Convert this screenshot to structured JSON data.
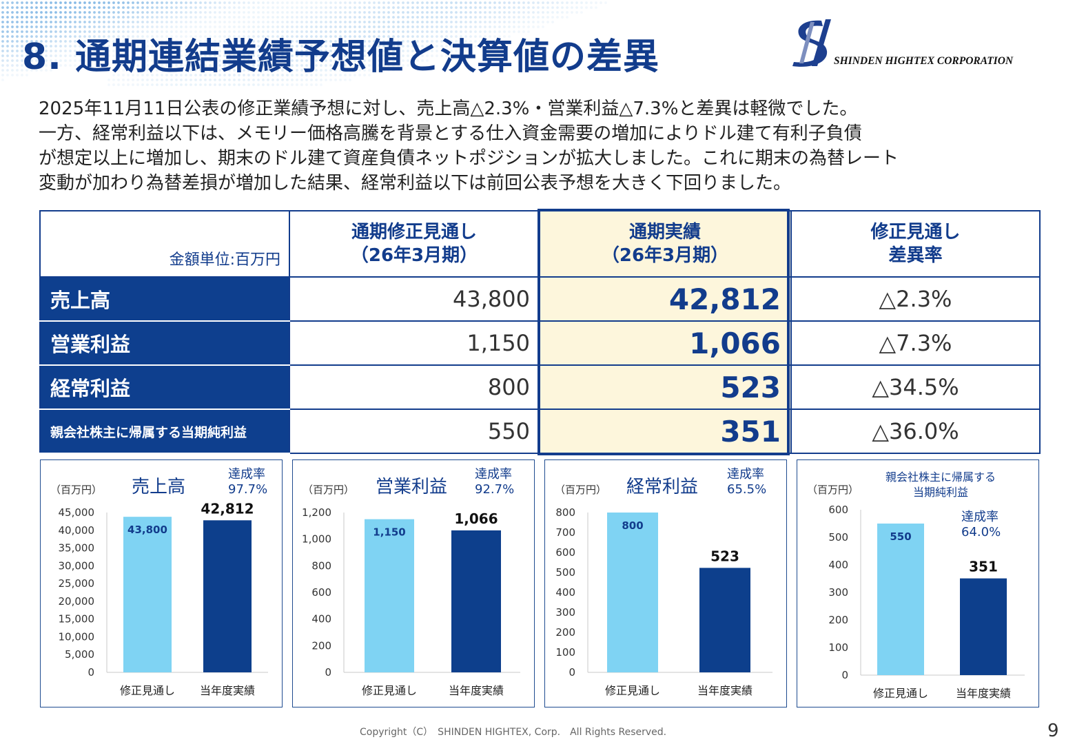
{
  "header": {
    "title": "8. 通期連結業績予想値と決算値の差異",
    "logo_text": "SHINDEN HIGHTEX CORPORATION"
  },
  "summary": [
    "2025年11月11日公表の修正業績予想に対し、売上高△2.3%・営業利益△7.3%と差異は軽微でした。",
    "一方、経常利益以下は、メモリー価格高騰を背景とする仕入資金需要の増加によりドル建て有利子負債",
    "が想定以上に増加し、期末のドル建て資産負債ネットポジションが拡大しました。これに期末の為替レート",
    "変動が加わり為替差損が増加した結果、経常利益以下は前回公表予想を大きく下回りました。"
  ],
  "table": {
    "unit_label": "金額単位:百万円",
    "headers": [
      {
        "line1": "通期修正見通し",
        "line2": "（26年3月期）"
      },
      {
        "line1": "通期実績",
        "line2": "（26年3月期）"
      },
      {
        "line1": "修正見通し",
        "line2": "差異率"
      }
    ],
    "rows": [
      {
        "label": "売上高",
        "forecast": "43,800",
        "actual": "42,812",
        "rate": "△2.3%"
      },
      {
        "label": "営業利益",
        "forecast": "1,150",
        "actual": "1,066",
        "rate": "△7.3%"
      },
      {
        "label": "経常利益",
        "forecast": "800",
        "actual": "523",
        "rate": "△34.5%"
      },
      {
        "label": "親会社株主に帰属する当期純利益",
        "forecast": "550",
        "actual": "351",
        "rate": "△36.0%"
      }
    ]
  },
  "colors": {
    "forecast_bar": "#7fd3f3",
    "actual_bar": "#0d3f8c",
    "navy": "#123c8c",
    "highlight": "#fdf6dc"
  },
  "chart_data": [
    {
      "type": "bar",
      "title": "売上高",
      "unit": "（百万円）",
      "achievement_label": "達成率",
      "achievement": "97.7%",
      "categories": [
        "修正見通し",
        "当年度実績"
      ],
      "values": [
        43800,
        42812
      ],
      "value_labels": [
        "43,800",
        "42,812"
      ],
      "ylim": [
        0,
        45000
      ],
      "yticks": [
        0,
        5000,
        10000,
        15000,
        20000,
        25000,
        30000,
        35000,
        40000,
        45000
      ],
      "ytick_labels": [
        "0",
        "5,000",
        "10,000",
        "15,000",
        "20,000",
        "25,000",
        "30,000",
        "35,000",
        "40,000",
        "45,000"
      ]
    },
    {
      "type": "bar",
      "title": "営業利益",
      "unit": "（百万円）",
      "achievement_label": "達成率",
      "achievement": "92.7%",
      "categories": [
        "修正見通し",
        "当年度実績"
      ],
      "values": [
        1150,
        1066
      ],
      "value_labels": [
        "1,150",
        "1,066"
      ],
      "ylim": [
        0,
        1200
      ],
      "yticks": [
        0,
        200,
        400,
        600,
        800,
        1000,
        1200
      ],
      "ytick_labels": [
        "0",
        "200",
        "400",
        "600",
        "800",
        "1,000",
        "1,200"
      ]
    },
    {
      "type": "bar",
      "title": "経常利益",
      "unit": "（百万円）",
      "achievement_label": "達成率",
      "achievement": "65.5%",
      "categories": [
        "修正見通し",
        "当年度実績"
      ],
      "values": [
        800,
        523
      ],
      "value_labels": [
        "800",
        "523"
      ],
      "ylim": [
        0,
        800
      ],
      "yticks": [
        0,
        100,
        200,
        300,
        400,
        500,
        600,
        700,
        800
      ],
      "ytick_labels": [
        "0",
        "100",
        "200",
        "300",
        "400",
        "500",
        "600",
        "700",
        "800"
      ]
    },
    {
      "type": "bar",
      "title_line1": "親会社株主に帰属する",
      "title_line2": "当期純利益",
      "unit": "（百万円）",
      "achievement_label": "達成率",
      "achievement": "64.0%",
      "categories": [
        "修正見通し",
        "当年度実績"
      ],
      "values": [
        550,
        351
      ],
      "value_labels": [
        "550",
        "351"
      ],
      "ylim": [
        0,
        600
      ],
      "yticks": [
        0,
        100,
        200,
        300,
        400,
        500,
        600
      ],
      "ytick_labels": [
        "0",
        "100",
        "200",
        "300",
        "400",
        "500",
        "600"
      ]
    }
  ],
  "footer": {
    "copyright": "Copyright（C）　SHINDEN HIGHTEX, Corp.　All Rights Reserved.",
    "page_number": "9"
  }
}
